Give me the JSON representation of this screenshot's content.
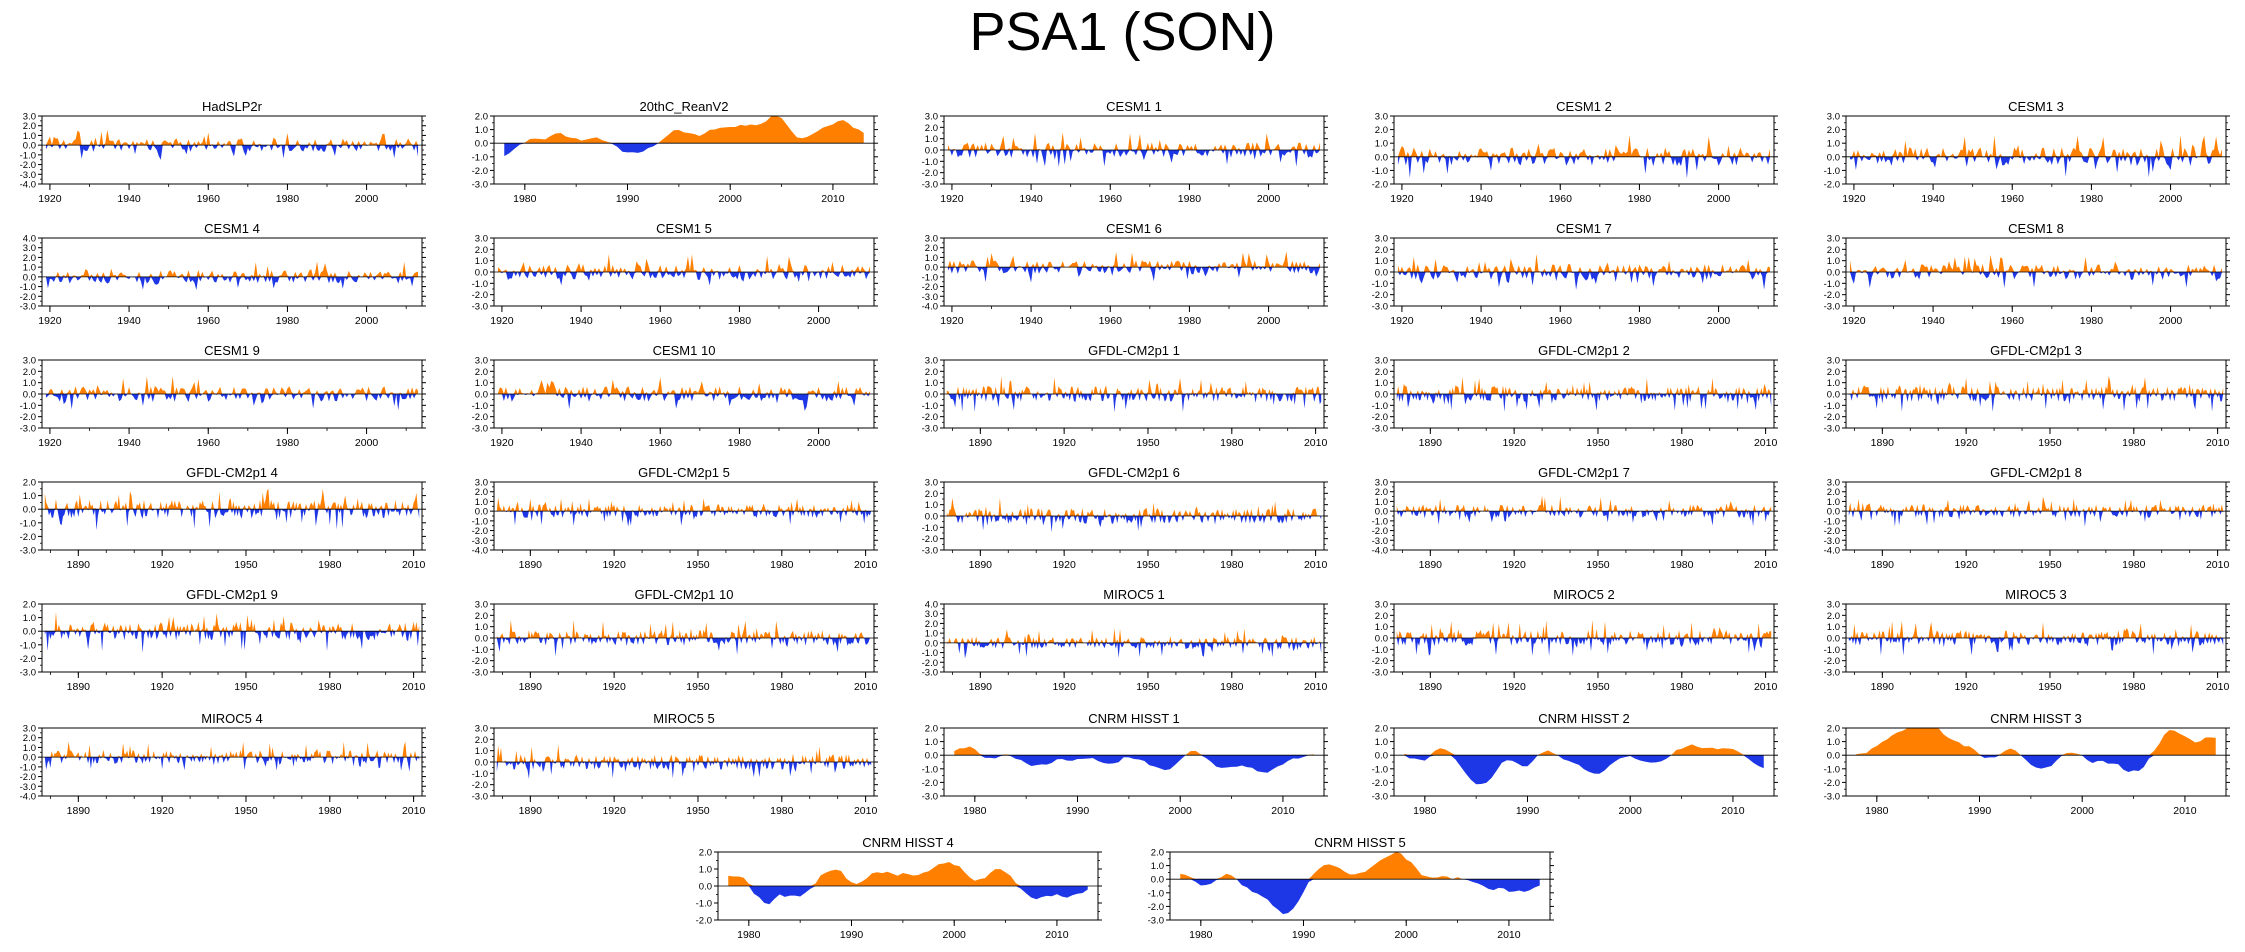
{
  "title": "PSA1 (SON)",
  "colors": {
    "positive": "#ff8000",
    "negative": "#1e37e6",
    "axis": "#000000",
    "zero_line": "#000000"
  },
  "chart_data": [
    {
      "type": "area",
      "title": "HadSLP2r",
      "xlim": [
        1918,
        2014
      ],
      "x_ticks": [
        1920,
        1940,
        1960,
        1980,
        2000
      ],
      "ylim": [
        -4,
        3
      ],
      "y_ticks": [
        3,
        2,
        1,
        0,
        -1,
        -2,
        -3,
        -4
      ],
      "y_tick_labels": [
        "3.0",
        "2.0",
        "1.0",
        "0.0",
        "-1.0",
        "-2.0",
        "-3.0",
        "-4.0"
      ],
      "series_kind": "annual",
      "seed": 11
    },
    {
      "type": "area",
      "title": "20thC_ReanV2",
      "xlim": [
        1977,
        2014
      ],
      "x_ticks": [
        1980,
        1990,
        2000,
        2010
      ],
      "ylim": [
        -3,
        2
      ],
      "y_ticks": [
        2,
        1,
        0,
        -1,
        -2,
        -3
      ],
      "y_tick_labels": [
        "2.0",
        "1.0",
        "0.0",
        "-1.0",
        "-2.0",
        "-3.0"
      ],
      "series_kind": "smooth",
      "seed": 23
    },
    {
      "type": "area",
      "title": "CESM1 1",
      "xlim": [
        1918,
        2014
      ],
      "x_ticks": [
        1920,
        1940,
        1960,
        1980,
        2000
      ],
      "ylim": [
        -3,
        3
      ],
      "y_ticks": [
        3,
        2,
        1,
        0,
        -1,
        -2,
        -3
      ],
      "y_tick_labels": [
        "3.0",
        "2.0",
        "1.0",
        "0.0",
        "-1.0",
        "-2.0",
        "-3.0"
      ],
      "series_kind": "annual",
      "seed": 31
    },
    {
      "type": "area",
      "title": "CESM1 2",
      "xlim": [
        1918,
        2014
      ],
      "x_ticks": [
        1920,
        1940,
        1960,
        1980,
        2000
      ],
      "ylim": [
        -2,
        3
      ],
      "y_ticks": [
        3,
        2,
        1,
        0,
        -1,
        -2
      ],
      "y_tick_labels": [
        "3.0",
        "2.0",
        "1.0",
        "0.0",
        "-1.0",
        "-2.0"
      ],
      "series_kind": "annual",
      "seed": 37
    },
    {
      "type": "area",
      "title": "CESM1 3",
      "xlim": [
        1918,
        2014
      ],
      "x_ticks": [
        1920,
        1940,
        1960,
        1980,
        2000
      ],
      "ylim": [
        -2,
        3
      ],
      "y_ticks": [
        3,
        2,
        1,
        0,
        -1,
        -2
      ],
      "y_tick_labels": [
        "3.0",
        "2.0",
        "1.0",
        "0.0",
        "-1.0",
        "-2.0"
      ],
      "series_kind": "annual",
      "seed": 41
    },
    {
      "type": "area",
      "title": "CESM1 4",
      "xlim": [
        1918,
        2014
      ],
      "x_ticks": [
        1920,
        1940,
        1960,
        1980,
        2000
      ],
      "ylim": [
        -3,
        4
      ],
      "y_ticks": [
        4,
        3,
        2,
        1,
        0,
        -1,
        -2,
        -3
      ],
      "y_tick_labels": [
        "4.0",
        "3.0",
        "2.0",
        "1.0",
        "0.0",
        "-1.0",
        "-2.0",
        "-3.0"
      ],
      "series_kind": "annual",
      "seed": 43
    },
    {
      "type": "area",
      "title": "CESM1 5",
      "xlim": [
        1918,
        2014
      ],
      "x_ticks": [
        1920,
        1940,
        1960,
        1980,
        2000
      ],
      "ylim": [
        -3,
        3
      ],
      "y_ticks": [
        3,
        2,
        1,
        0,
        -1,
        -2,
        -3
      ],
      "y_tick_labels": [
        "3.0",
        "2.0",
        "1.0",
        "0.0",
        "-1.0",
        "-2.0",
        "-3.0"
      ],
      "series_kind": "annual",
      "seed": 47
    },
    {
      "type": "area",
      "title": "CESM1 6",
      "xlim": [
        1918,
        2014
      ],
      "x_ticks": [
        1920,
        1940,
        1960,
        1980,
        2000
      ],
      "ylim": [
        -4,
        3
      ],
      "y_ticks": [
        3,
        2,
        1,
        0,
        -1,
        -2,
        -3,
        -4
      ],
      "y_tick_labels": [
        "3.0",
        "2.0",
        "1.0",
        "0.0",
        "-1.0",
        "-2.0",
        "-3.0",
        "-4.0"
      ],
      "series_kind": "annual",
      "seed": 53
    },
    {
      "type": "area",
      "title": "CESM1 7",
      "xlim": [
        1918,
        2014
      ],
      "x_ticks": [
        1920,
        1940,
        1960,
        1980,
        2000
      ],
      "ylim": [
        -3,
        3
      ],
      "y_ticks": [
        3,
        2,
        1,
        0,
        -1,
        -2,
        -3
      ],
      "y_tick_labels": [
        "3.0",
        "2.0",
        "1.0",
        "0.0",
        "-1.0",
        "-2.0",
        "-3.0"
      ],
      "series_kind": "annual",
      "seed": 59
    },
    {
      "type": "area",
      "title": "CESM1 8",
      "xlim": [
        1918,
        2014
      ],
      "x_ticks": [
        1920,
        1940,
        1960,
        1980,
        2000
      ],
      "ylim": [
        -3,
        3
      ],
      "y_ticks": [
        3,
        2,
        1,
        0,
        -1,
        -2,
        -3
      ],
      "y_tick_labels": [
        "3.0",
        "2.0",
        "1.0",
        "0.0",
        "-1.0",
        "-2.0",
        "-3.0"
      ],
      "series_kind": "annual",
      "seed": 61
    },
    {
      "type": "area",
      "title": "CESM1 9",
      "xlim": [
        1918,
        2014
      ],
      "x_ticks": [
        1920,
        1940,
        1960,
        1980,
        2000
      ],
      "ylim": [
        -3,
        3
      ],
      "y_ticks": [
        3,
        2,
        1,
        0,
        -1,
        -2,
        -3
      ],
      "y_tick_labels": [
        "3.0",
        "2.0",
        "1.0",
        "0.0",
        "-1.0",
        "-2.0",
        "-3.0"
      ],
      "series_kind": "annual",
      "seed": 67
    },
    {
      "type": "area",
      "title": "CESM1 10",
      "xlim": [
        1918,
        2014
      ],
      "x_ticks": [
        1920,
        1940,
        1960,
        1980,
        2000
      ],
      "ylim": [
        -3,
        3
      ],
      "y_ticks": [
        3,
        2,
        1,
        0,
        -1,
        -2,
        -3
      ],
      "y_tick_labels": [
        "3.0",
        "2.0",
        "1.0",
        "0.0",
        "-1.0",
        "-2.0",
        "-3.0"
      ],
      "series_kind": "annual",
      "seed": 71
    },
    {
      "type": "area",
      "title": "GFDL-CM2p1 1",
      "xlim": [
        1877,
        2013
      ],
      "x_ticks": [
        1890,
        1920,
        1950,
        1980,
        2010
      ],
      "ylim": [
        -3,
        3
      ],
      "y_ticks": [
        3,
        2,
        1,
        0,
        -1,
        -2,
        -3
      ],
      "y_tick_labels": [
        "3.0",
        "2.0",
        "1.0",
        "0.0",
        "-1.0",
        "-2.0",
        "-3.0"
      ],
      "series_kind": "annual",
      "seed": 73
    },
    {
      "type": "area",
      "title": "GFDL-CM2p1 2",
      "xlim": [
        1877,
        2013
      ],
      "x_ticks": [
        1890,
        1920,
        1950,
        1980,
        2010
      ],
      "ylim": [
        -3,
        3
      ],
      "y_ticks": [
        3,
        2,
        1,
        0,
        -1,
        -2,
        -3
      ],
      "y_tick_labels": [
        "3.0",
        "2.0",
        "1.0",
        "0.0",
        "-1.0",
        "-2.0",
        "-3.0"
      ],
      "series_kind": "annual",
      "seed": 79
    },
    {
      "type": "area",
      "title": "GFDL-CM2p1 3",
      "xlim": [
        1877,
        2013
      ],
      "x_ticks": [
        1890,
        1920,
        1950,
        1980,
        2010
      ],
      "ylim": [
        -3,
        3
      ],
      "y_ticks": [
        3,
        2,
        1,
        0,
        -1,
        -2,
        -3
      ],
      "y_tick_labels": [
        "3.0",
        "2.0",
        "1.0",
        "0.0",
        "-1.0",
        "-2.0",
        "-3.0"
      ],
      "series_kind": "annual",
      "seed": 83
    },
    {
      "type": "area",
      "title": "GFDL-CM2p1 4",
      "xlim": [
        1877,
        2013
      ],
      "x_ticks": [
        1890,
        1920,
        1950,
        1980,
        2010
      ],
      "ylim": [
        -3,
        2
      ],
      "y_ticks": [
        2,
        1,
        0,
        -1,
        -2,
        -3
      ],
      "y_tick_labels": [
        "2.0",
        "1.0",
        "0.0",
        "-1.0",
        "-2.0",
        "-3.0"
      ],
      "series_kind": "annual",
      "seed": 89
    },
    {
      "type": "area",
      "title": "GFDL-CM2p1 5",
      "xlim": [
        1877,
        2013
      ],
      "x_ticks": [
        1890,
        1920,
        1950,
        1980,
        2010
      ],
      "ylim": [
        -4,
        3
      ],
      "y_ticks": [
        3,
        2,
        1,
        0,
        -1,
        -2,
        -3,
        -4
      ],
      "y_tick_labels": [
        "3.0",
        "2.0",
        "1.0",
        "0.0",
        "-1.0",
        "-2.0",
        "-3.0",
        "-4.0"
      ],
      "series_kind": "annual",
      "seed": 97
    },
    {
      "type": "area",
      "title": "GFDL-CM2p1 6",
      "xlim": [
        1877,
        2013
      ],
      "x_ticks": [
        1890,
        1920,
        1950,
        1980,
        2010
      ],
      "ylim": [
        -3,
        3
      ],
      "y_ticks": [
        3,
        2,
        1,
        0,
        -1,
        -2,
        -3
      ],
      "y_tick_labels": [
        "3.0",
        "2.0",
        "1.0",
        "0.0",
        "-1.0",
        "-2.0",
        "-3.0"
      ],
      "series_kind": "annual",
      "seed": 101
    },
    {
      "type": "area",
      "title": "GFDL-CM2p1 7",
      "xlim": [
        1877,
        2013
      ],
      "x_ticks": [
        1890,
        1920,
        1950,
        1980,
        2010
      ],
      "ylim": [
        -4,
        3
      ],
      "y_ticks": [
        3,
        2,
        1,
        0,
        -1,
        -2,
        -3,
        -4
      ],
      "y_tick_labels": [
        "3.0",
        "2.0",
        "1.0",
        "0.0",
        "-1.0",
        "-2.0",
        "-3.0",
        "-4.0"
      ],
      "series_kind": "annual",
      "seed": 103
    },
    {
      "type": "area",
      "title": "GFDL-CM2p1 8",
      "xlim": [
        1877,
        2013
      ],
      "x_ticks": [
        1890,
        1920,
        1950,
        1980,
        2010
      ],
      "ylim": [
        -4,
        3
      ],
      "y_ticks": [
        3,
        2,
        1,
        0,
        -1,
        -2,
        -3,
        -4
      ],
      "y_tick_labels": [
        "3.0",
        "2.0",
        "1.0",
        "0.0",
        "-1.0",
        "-2.0",
        "-3.0",
        "-4.0"
      ],
      "series_kind": "annual",
      "seed": 107
    },
    {
      "type": "area",
      "title": "GFDL-CM2p1 9",
      "xlim": [
        1877,
        2013
      ],
      "x_ticks": [
        1890,
        1920,
        1950,
        1980,
        2010
      ],
      "ylim": [
        -3,
        2
      ],
      "y_ticks": [
        2,
        1,
        0,
        -1,
        -2,
        -3
      ],
      "y_tick_labels": [
        "2.0",
        "1.0",
        "0.0",
        "-1.0",
        "-2.0",
        "-3.0"
      ],
      "series_kind": "annual",
      "seed": 109
    },
    {
      "type": "area",
      "title": "GFDL-CM2p1 10",
      "xlim": [
        1877,
        2013
      ],
      "x_ticks": [
        1890,
        1920,
        1950,
        1980,
        2010
      ],
      "ylim": [
        -3,
        3
      ],
      "y_ticks": [
        3,
        2,
        1,
        0,
        -1,
        -2,
        -3
      ],
      "y_tick_labels": [
        "3.0",
        "2.0",
        "1.0",
        "0.0",
        "-1.0",
        "-2.0",
        "-3.0"
      ],
      "series_kind": "annual",
      "seed": 113
    },
    {
      "type": "area",
      "title": "MIROC5 1",
      "xlim": [
        1877,
        2013
      ],
      "x_ticks": [
        1890,
        1920,
        1950,
        1980,
        2010
      ],
      "ylim": [
        -3,
        4
      ],
      "y_ticks": [
        4,
        3,
        2,
        1,
        0,
        -1,
        -2,
        -3
      ],
      "y_tick_labels": [
        "4.0",
        "3.0",
        "2.0",
        "1.0",
        "0.0",
        "-1.0",
        "-2.0",
        "-3.0"
      ],
      "series_kind": "annual",
      "seed": 127
    },
    {
      "type": "area",
      "title": "MIROC5 2",
      "xlim": [
        1877,
        2013
      ],
      "x_ticks": [
        1890,
        1920,
        1950,
        1980,
        2010
      ],
      "ylim": [
        -3,
        3
      ],
      "y_ticks": [
        3,
        2,
        1,
        0,
        -1,
        -2,
        -3
      ],
      "y_tick_labels": [
        "3.0",
        "2.0",
        "1.0",
        "0.0",
        "-1.0",
        "-2.0",
        "-3.0"
      ],
      "series_kind": "annual",
      "seed": 131
    },
    {
      "type": "area",
      "title": "MIROC5 3",
      "xlim": [
        1877,
        2013
      ],
      "x_ticks": [
        1890,
        1920,
        1950,
        1980,
        2010
      ],
      "ylim": [
        -3,
        3
      ],
      "y_ticks": [
        3,
        2,
        1,
        0,
        -1,
        -2,
        -3
      ],
      "y_tick_labels": [
        "3.0",
        "2.0",
        "1.0",
        "0.0",
        "-1.0",
        "-2.0",
        "-3.0"
      ],
      "series_kind": "annual",
      "seed": 137
    },
    {
      "type": "area",
      "title": "MIROC5 4",
      "xlim": [
        1877,
        2013
      ],
      "x_ticks": [
        1890,
        1920,
        1950,
        1980,
        2010
      ],
      "ylim": [
        -4,
        3
      ],
      "y_ticks": [
        3,
        2,
        1,
        0,
        -1,
        -2,
        -3,
        -4
      ],
      "y_tick_labels": [
        "3.0",
        "2.0",
        "1.0",
        "0.0",
        "-1.0",
        "-2.0",
        "-3.0",
        "-4.0"
      ],
      "series_kind": "annual",
      "seed": 139
    },
    {
      "type": "area",
      "title": "MIROC5 5",
      "xlim": [
        1877,
        2013
      ],
      "x_ticks": [
        1890,
        1920,
        1950,
        1980,
        2010
      ],
      "ylim": [
        -3,
        3
      ],
      "y_ticks": [
        3,
        2,
        1,
        0,
        -1,
        -2,
        -3
      ],
      "y_tick_labels": [
        "3.0",
        "2.0",
        "1.0",
        "0.0",
        "-1.0",
        "-2.0",
        "-3.0"
      ],
      "series_kind": "annual",
      "seed": 149
    },
    {
      "type": "area",
      "title": "CNRM HISST 1",
      "xlim": [
        1977,
        2014
      ],
      "x_ticks": [
        1980,
        1990,
        2000,
        2010
      ],
      "ylim": [
        -3,
        2
      ],
      "y_ticks": [
        2,
        1,
        0,
        -1,
        -2,
        -3
      ],
      "y_tick_labels": [
        "2.0",
        "1.0",
        "0.0",
        "-1.0",
        "-2.0",
        "-3.0"
      ],
      "series_kind": "smooth",
      "seed": 151
    },
    {
      "type": "area",
      "title": "CNRM HISST 2",
      "xlim": [
        1977,
        2014
      ],
      "x_ticks": [
        1980,
        1990,
        2000,
        2010
      ],
      "ylim": [
        -3,
        2
      ],
      "y_ticks": [
        2,
        1,
        0,
        -1,
        -2,
        -3
      ],
      "y_tick_labels": [
        "2.0",
        "1.0",
        "0.0",
        "-1.0",
        "-2.0",
        "-3.0"
      ],
      "series_kind": "smooth",
      "seed": 157
    },
    {
      "type": "area",
      "title": "CNRM HISST 3",
      "xlim": [
        1977,
        2014
      ],
      "x_ticks": [
        1980,
        1990,
        2000,
        2010
      ],
      "ylim": [
        -3,
        2
      ],
      "y_ticks": [
        2,
        1,
        0,
        -1,
        -2,
        -3
      ],
      "y_tick_labels": [
        "2.0",
        "1.0",
        "0.0",
        "-1.0",
        "-2.0",
        "-3.0"
      ],
      "series_kind": "smooth",
      "seed": 163
    },
    {
      "type": "area",
      "title": "CNRM HISST 4",
      "xlim": [
        1977,
        2014
      ],
      "x_ticks": [
        1980,
        1990,
        2000,
        2010
      ],
      "ylim": [
        -2,
        2
      ],
      "y_ticks": [
        2,
        1,
        0,
        -1,
        -2
      ],
      "y_tick_labels": [
        "2.0",
        "1.0",
        "0.0",
        "-1.0",
        "-2.0"
      ],
      "series_kind": "smooth",
      "seed": 167
    },
    {
      "type": "area",
      "title": "CNRM HISST 5",
      "xlim": [
        1977,
        2014
      ],
      "x_ticks": [
        1980,
        1990,
        2000,
        2010
      ],
      "ylim": [
        -3,
        2
      ],
      "y_ticks": [
        2,
        1,
        0,
        -1,
        -2,
        -3
      ],
      "y_tick_labels": [
        "2.0",
        "1.0",
        "0.0",
        "-1.0",
        "-2.0",
        "-3.0"
      ],
      "series_kind": "smooth",
      "seed": 173
    }
  ]
}
